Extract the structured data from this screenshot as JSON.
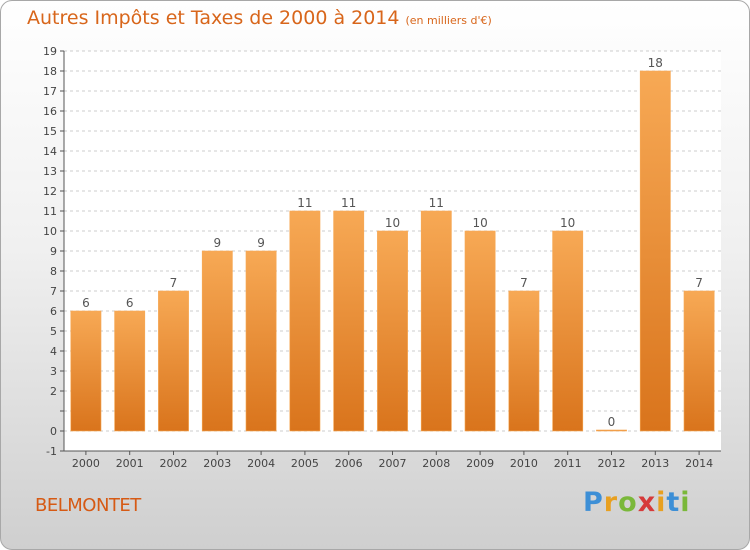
{
  "title": "Autres Impôts et Taxes de 2000 à 2014",
  "subtitle": "(en milliers d'€)",
  "place": "BELMONTET",
  "logo": {
    "letters": [
      "P",
      "r",
      "o",
      "x",
      "i",
      "t",
      "i"
    ],
    "colors": [
      "#3d8fd6",
      "#e8a020",
      "#7ab83a",
      "#d63a3a",
      "#e8a020",
      "#3d8fd6",
      "#7ab83a"
    ]
  },
  "colors": {
    "bar_light": "#f7a955",
    "bar_dark": "#d9741c",
    "title": "#d8661b",
    "axis": "#555555",
    "grid": "#cccccc"
  },
  "chart_data": {
    "type": "bar",
    "title": "Autres Impôts et Taxes de 2000 à 2014",
    "subtitle": "(en milliers d'€)",
    "categories": [
      "2000",
      "2001",
      "2002",
      "2003",
      "2004",
      "2005",
      "2006",
      "2007",
      "2008",
      "2009",
      "2010",
      "2011",
      "2012",
      "2013",
      "2014"
    ],
    "values": [
      6,
      6,
      7,
      9,
      9,
      11,
      11,
      10,
      11,
      10,
      7,
      10,
      0,
      18,
      7
    ],
    "data_labels": [
      "6",
      "6",
      "7",
      "9",
      "9",
      "11",
      "11",
      "10",
      "11",
      "10",
      "7",
      "10",
      "0",
      "18",
      "7"
    ],
    "yticks": [
      "-1",
      "0",
      "",
      "2",
      "3",
      "4",
      "5",
      "6",
      "7",
      "8",
      "9",
      "10",
      "11",
      "12",
      "13",
      "14",
      "15",
      "16",
      "17",
      "18",
      "19"
    ],
    "ylim": [
      -1,
      19
    ],
    "xlabel": "",
    "ylabel": "",
    "grid": "horizontal dashed"
  }
}
